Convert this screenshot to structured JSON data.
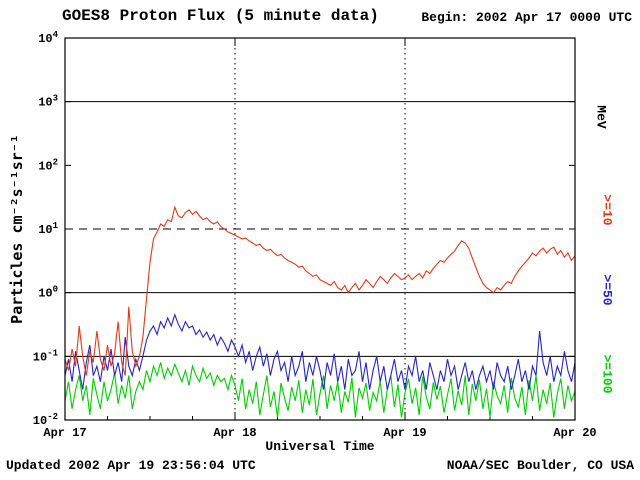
{
  "header": {
    "title": "GOES8 Proton Flux (5 minute data)",
    "begin_label": "Begin: 2002 Apr 17 0000 UTC"
  },
  "footer": {
    "updated": "Updated 2002 Apr 19 23:56:04 UTC",
    "credit": "NOAA/SEC Boulder, CO USA"
  },
  "chart_data": {
    "type": "line",
    "title": "GOES8 Proton Flux (5 minute data)",
    "xlabel": "Universal Time",
    "ylabel": "Particles cm⁻²s⁻¹sr⁻¹",
    "right_axis_label": "MeV",
    "y_scale": "log",
    "ylim": [
      0.01,
      10000
    ],
    "y_tick_exponents": [
      -2,
      -1,
      0,
      1,
      2,
      3,
      4
    ],
    "x_range_hours": [
      0,
      72
    ],
    "x_tick_labels": [
      "Apr 17",
      "Apr 18",
      "Apr 19",
      "Apr 20"
    ],
    "x_minor_tick_hours": 6,
    "vertical_gridlines_hours": [
      24,
      48
    ],
    "reference_lines": [
      {
        "value": 1000,
        "style": "solid"
      },
      {
        "value": 10,
        "style": "dashed"
      },
      {
        "value": 1,
        "style": "solid"
      },
      {
        "value": 0.1,
        "style": "solid"
      }
    ],
    "legend": [
      {
        "label": ">=10",
        "color": "#dd3a1a"
      },
      {
        "label": ">=50",
        "color": "#2525c0"
      },
      {
        "label": ">=100",
        "color": "#00cc00"
      }
    ],
    "series": [
      {
        "name": ">=10 MeV",
        "color": "#dd3a1a",
        "values": [
          0.09,
          0.06,
          0.13,
          0.07,
          0.3,
          0.1,
          0.05,
          0.12,
          0.08,
          0.25,
          0.09,
          0.06,
          0.15,
          0.07,
          0.11,
          0.35,
          0.08,
          0.05,
          0.6,
          0.12,
          0.07,
          0.1,
          0.2,
          0.8,
          3,
          7,
          9,
          12,
          11,
          14,
          13,
          22,
          16,
          15,
          18,
          20,
          17,
          19,
          16,
          14,
          15,
          13,
          12,
          13,
          11,
          10,
          9,
          8.5,
          8,
          7.5,
          7,
          7.2,
          6.5,
          6,
          5.5,
          5.8,
          5,
          4.6,
          4.8,
          4.2,
          3.8,
          4,
          3.5,
          3.2,
          3,
          2.8,
          2.5,
          2.6,
          2.2,
          2,
          1.8,
          1.9,
          1.6,
          1.5,
          1.4,
          1.3,
          1.5,
          1.2,
          1.1,
          1.3,
          1,
          1.2,
          1.4,
          1.1,
          1.3,
          1.6,
          1.4,
          1.2,
          1.5,
          1.8,
          1.6,
          1.4,
          1.7,
          2,
          1.8,
          1.6,
          1.7,
          1.9,
          1.6,
          1.8,
          2,
          1.7,
          2.2,
          2,
          2.4,
          2.8,
          3.2,
          3,
          3.5,
          4,
          4.5,
          5.5,
          6.5,
          6,
          5,
          3.5,
          2.5,
          1.8,
          1.4,
          1.2,
          1.1,
          1,
          1.2,
          1.1,
          1.3,
          1.5,
          1.4,
          1.8,
          2.2,
          2.6,
          3,
          3.5,
          4.2,
          3.8,
          4.5,
          5,
          4.2,
          4.8,
          5.2,
          4,
          4.6,
          3.6,
          4.2,
          3.2,
          3.8
        ]
      },
      {
        "name": ">=50 MeV",
        "color": "#2525c0",
        "values": [
          0.05,
          0.09,
          0.04,
          0.12,
          0.06,
          0.03,
          0.08,
          0.15,
          0.05,
          0.07,
          0.04,
          0.1,
          0.06,
          0.13,
          0.05,
          0.08,
          0.04,
          0.2,
          0.07,
          0.05,
          0.09,
          0.06,
          0.1,
          0.18,
          0.25,
          0.3,
          0.22,
          0.35,
          0.28,
          0.4,
          0.3,
          0.45,
          0.32,
          0.25,
          0.35,
          0.28,
          0.3,
          0.22,
          0.26,
          0.2,
          0.24,
          0.18,
          0.22,
          0.15,
          0.2,
          0.16,
          0.12,
          0.18,
          0.14,
          0.1,
          0.15,
          0.08,
          0.12,
          0.06,
          0.1,
          0.14,
          0.07,
          0.11,
          0.05,
          0.09,
          0.12,
          0.06,
          0.08,
          0.04,
          0.1,
          0.05,
          0.07,
          0.12,
          0.04,
          0.08,
          0.05,
          0.1,
          0.06,
          0.03,
          0.08,
          0.05,
          0.11,
          0.04,
          0.07,
          0.03,
          0.09,
          0.05,
          0.06,
          0.12,
          0.04,
          0.08,
          0.03,
          0.06,
          0.1,
          0.04,
          0.07,
          0.03,
          0.05,
          0.09,
          0.04,
          0.06,
          0.03,
          0.07,
          0.05,
          0.1,
          0.04,
          0.06,
          0.03,
          0.08,
          0.05,
          0.03,
          0.06,
          0.04,
          0.09,
          0.05,
          0.07,
          0.03,
          0.05,
          0.08,
          0.04,
          0.06,
          0.03,
          0.05,
          0.07,
          0.04,
          0.06,
          0.03,
          0.08,
          0.05,
          0.04,
          0.07,
          0.03,
          0.05,
          0.09,
          0.04,
          0.06,
          0.03,
          0.07,
          0.05,
          0.25,
          0.08,
          0.05,
          0.1,
          0.04,
          0.07,
          0.05,
          0.12,
          0.06,
          0.04,
          0.08
        ]
      },
      {
        "name": ">=100 MeV",
        "color": "#00cc00",
        "values": [
          0.02,
          0.04,
          0.015,
          0.03,
          0.05,
          0.02,
          0.035,
          0.012,
          0.045,
          0.025,
          0.015,
          0.04,
          0.02,
          0.03,
          0.055,
          0.018,
          0.035,
          0.022,
          0.05,
          0.015,
          0.028,
          0.04,
          0.03,
          0.06,
          0.04,
          0.07,
          0.05,
          0.08,
          0.045,
          0.065,
          0.05,
          0.075,
          0.055,
          0.04,
          0.06,
          0.035,
          0.07,
          0.05,
          0.04,
          0.065,
          0.045,
          0.055,
          0.035,
          0.05,
          0.04,
          0.045,
          0.03,
          0.05,
          0.035,
          0.02,
          0.045,
          0.015,
          0.03,
          0.018,
          0.04,
          0.012,
          0.025,
          0.05,
          0.016,
          0.028,
          0.011,
          0.038,
          0.022,
          0.014,
          0.033,
          0.02,
          0.042,
          0.013,
          0.03,
          0.017,
          0.044,
          0.012,
          0.026,
          0.05,
          0.015,
          0.035,
          0.02,
          0.04,
          0.013,
          0.028,
          0.019,
          0.046,
          0.011,
          0.032,
          0.022,
          0.038,
          0.014,
          0.027,
          0.02,
          0.041,
          0.013,
          0.03,
          0.05,
          0.016,
          0.036,
          0.011,
          0.027,
          0.044,
          0.018,
          0.032,
          0.012,
          0.048,
          0.023,
          0.015,
          0.039,
          0.021,
          0.034,
          0.013,
          0.025,
          0.045,
          0.014,
          0.029,
          0.017,
          0.05,
          0.012,
          0.037,
          0.02,
          0.043,
          0.015,
          0.031,
          0.011,
          0.04,
          0.024,
          0.018,
          0.035,
          0.013,
          0.046,
          0.022,
          0.016,
          0.033,
          0.012,
          0.042,
          0.02,
          0.05,
          0.014,
          0.03,
          0.018,
          0.038,
          0.011,
          0.026,
          0.045,
          0.015,
          0.035,
          0.02,
          0.028
        ]
      }
    ]
  }
}
